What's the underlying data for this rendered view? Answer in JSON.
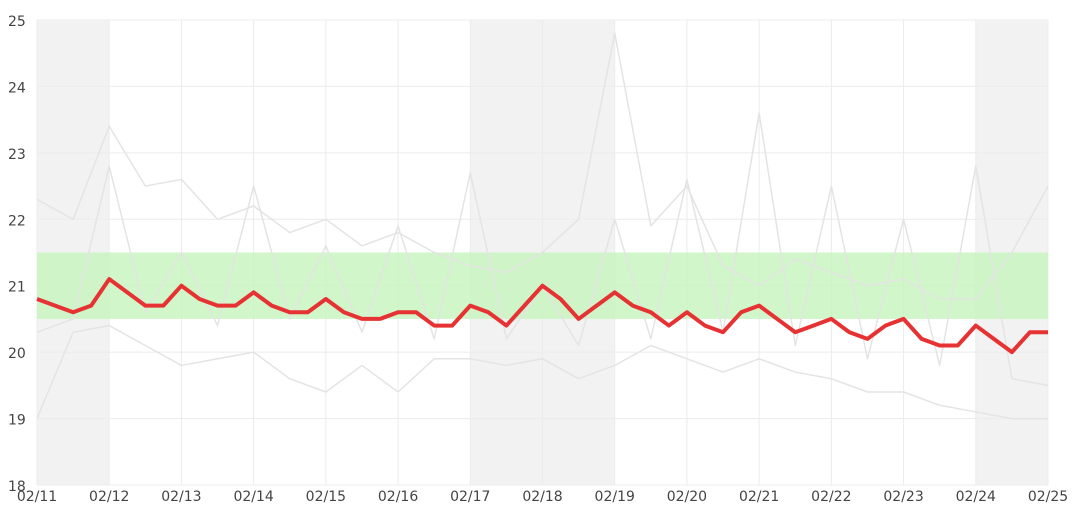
{
  "chart_data": {
    "type": "line",
    "x": [
      0,
      0.25,
      0.5,
      0.75,
      1,
      1.25,
      1.5,
      1.75,
      2,
      2.25,
      2.5,
      2.75,
      3,
      3.25,
      3.5,
      3.75,
      4,
      4.25,
      4.5,
      4.75,
      5,
      5.25,
      5.5,
      5.75,
      6,
      6.25,
      6.5,
      6.75,
      7,
      7.25,
      7.5,
      7.75,
      8,
      8.25,
      8.5,
      8.75,
      9,
      9.25,
      9.5,
      9.75,
      10,
      10.25,
      10.5,
      10.75,
      11,
      11.25,
      11.5,
      11.75,
      12,
      12.25,
      12.5,
      12.75,
      13,
      13.25,
      13.5,
      13.75,
      14
    ],
    "series": [
      {
        "color": "#e63232",
        "values": [
          20.8,
          20.7,
          20.6,
          20.7,
          21.1,
          20.9,
          20.7,
          20.7,
          21.0,
          20.8,
          20.7,
          20.7,
          20.9,
          20.7,
          20.6,
          20.6,
          20.8,
          20.6,
          20.5,
          20.5,
          20.6,
          20.6,
          20.4,
          20.4,
          20.7,
          20.6,
          20.4,
          20.7,
          21.0,
          20.8,
          20.5,
          20.7,
          20.9,
          20.7,
          20.6,
          20.4,
          20.6,
          20.4,
          20.3,
          20.6,
          20.7,
          20.5,
          20.3,
          20.4,
          20.5,
          20.3,
          20.2,
          20.4,
          20.5,
          20.2,
          20.1,
          20.1,
          20.4,
          20.2,
          20.0,
          20.3,
          20.3
        ]
      }
    ],
    "background_x": [
      0,
      0.5,
      1,
      1.5,
      2,
      2.5,
      3,
      3.5,
      4,
      4.5,
      5,
      5.5,
      6,
      6.5,
      7,
      7.5,
      8,
      8.5,
      9,
      9.5,
      10,
      10.5,
      11,
      11.5,
      12,
      12.5,
      13,
      13.5,
      14
    ],
    "background_series": [
      {
        "color": "#e4e4e4",
        "values": [
          22.3,
          22.0,
          23.4,
          22.5,
          22.6,
          22.0,
          22.2,
          21.8,
          22.0,
          21.6,
          21.8,
          21.5,
          21.3,
          21.2,
          21.5,
          22.0,
          24.8,
          21.9,
          22.5,
          21.3,
          21.0,
          21.4,
          21.2,
          21.0,
          21.1,
          20.8,
          20.8,
          21.5,
          22.5
        ]
      },
      {
        "color": "#e4e4e4",
        "values": [
          20.3,
          20.5,
          22.8,
          20.6,
          21.5,
          20.4,
          22.5,
          20.5,
          21.6,
          20.3,
          21.9,
          20.2,
          22.7,
          20.2,
          21.0,
          20.1,
          22.0,
          20.2,
          22.6,
          20.3,
          23.6,
          20.1,
          22.5,
          19.9,
          22.0,
          19.8,
          22.8,
          19.6,
          19.5
        ]
      },
      {
        "color": "#e4e4e4",
        "values": [
          19.0,
          20.3,
          20.4,
          20.1,
          19.8,
          19.9,
          20.0,
          19.6,
          19.4,
          19.8,
          19.4,
          19.9,
          19.9,
          19.8,
          19.9,
          19.6,
          19.8,
          20.1,
          19.9,
          19.7,
          19.9,
          19.7,
          19.6,
          19.4,
          19.4,
          19.2,
          19.1,
          19.0,
          19.0
        ]
      }
    ],
    "band": [
      20.5,
      21.5
    ],
    "band_color": "#c8f5bf",
    "shaded_ranges": [
      [
        0,
        1
      ],
      [
        6,
        8
      ],
      [
        13,
        14
      ]
    ],
    "shade_color": "#f2f2f2",
    "xlim": [
      0,
      14
    ],
    "xticks": [
      {
        "value": 0,
        "label": "02/11"
      },
      {
        "value": 1,
        "label": "02/12"
      },
      {
        "value": 2,
        "label": "02/13"
      },
      {
        "value": 3,
        "label": "02/14"
      },
      {
        "value": 4,
        "label": "02/15"
      },
      {
        "value": 5,
        "label": "02/16"
      },
      {
        "value": 6,
        "label": "02/17"
      },
      {
        "value": 7,
        "label": "02/18"
      },
      {
        "value": 8,
        "label": "02/19"
      },
      {
        "value": 9,
        "label": "02/20"
      },
      {
        "value": 10,
        "label": "02/21"
      },
      {
        "value": 11,
        "label": "02/22"
      },
      {
        "value": 12,
        "label": "02/23"
      },
      {
        "value": 13,
        "label": "02/24"
      },
      {
        "value": 14,
        "label": "02/25"
      }
    ],
    "ylim": [
      18,
      25
    ],
    "yticks": [
      18,
      19,
      20,
      21,
      22,
      23,
      24,
      25
    ],
    "grid": true
  }
}
